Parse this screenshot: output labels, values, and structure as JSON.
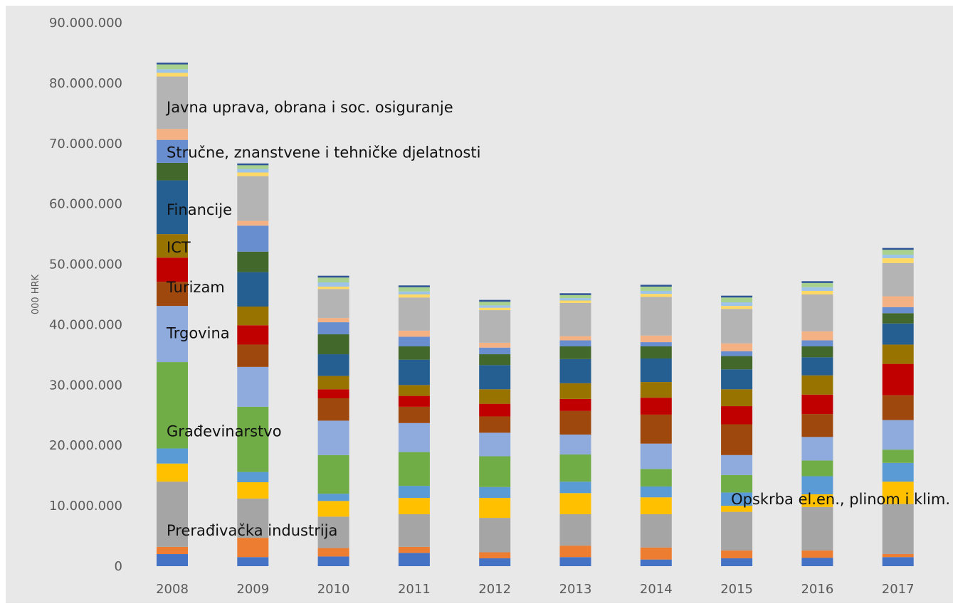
{
  "chart_data": {
    "type": "bar",
    "stacked": true,
    "title": "",
    "xlabel": "",
    "ylabel": "000 HRK",
    "ylim": [
      0,
      90000000
    ],
    "yticks": [
      0,
      10000000,
      20000000,
      30000000,
      40000000,
      50000000,
      60000000,
      70000000,
      80000000,
      90000000
    ],
    "ytick_labels": [
      "0",
      "10.000.000",
      "20.000.000",
      "30.000.000",
      "40.000.000",
      "50.000.000",
      "60.000.000",
      "70.000.000",
      "80.000.000",
      "90.000.000"
    ],
    "grid": false,
    "legend": "none",
    "categories": [
      "2008",
      "2009",
      "2010",
      "2011",
      "2012",
      "2013",
      "2014",
      "2015",
      "2016",
      "2017"
    ],
    "series": [
      {
        "color": "#4472c4",
        "values": [
          2000000,
          1500000,
          1600000,
          2200000,
          1300000,
          1500000,
          1100000,
          1300000,
          1400000,
          1500000
        ]
      },
      {
        "color": "#ed7d31",
        "values": [
          1200000,
          3200000,
          1400000,
          1000000,
          1000000,
          1900000,
          2000000,
          1300000,
          1200000,
          500000
        ]
      },
      {
        "color": "#a5a5a5",
        "values": [
          10800000,
          6500000,
          5200000,
          5400000,
          5700000,
          5200000,
          5500000,
          6400000,
          7200000,
          8300000
        ]
      },
      {
        "color": "#ffc000",
        "values": [
          3000000,
          2700000,
          2600000,
          2700000,
          3300000,
          3500000,
          2800000,
          1000000,
          2100000,
          3700000
        ]
      },
      {
        "color": "#5b9bd5",
        "values": [
          2500000,
          1700000,
          1200000,
          2000000,
          1800000,
          1900000,
          1800000,
          2200000,
          3000000,
          3100000
        ]
      },
      {
        "color": "#70ad47",
        "values": [
          14300000,
          10800000,
          6400000,
          5600000,
          5100000,
          4500000,
          2900000,
          2900000,
          2600000,
          2200000
        ]
      },
      {
        "color": "#8faadc",
        "values": [
          9300000,
          6600000,
          5700000,
          4800000,
          3900000,
          3300000,
          4200000,
          3300000,
          3900000,
          4900000
        ]
      },
      {
        "color": "#9e480e",
        "values": [
          4000000,
          3700000,
          3700000,
          2700000,
          2700000,
          3900000,
          4800000,
          5100000,
          3800000,
          4100000
        ]
      },
      {
        "color": "#c00000",
        "values": [
          4000000,
          3200000,
          1500000,
          1800000,
          2100000,
          2000000,
          2800000,
          3000000,
          3200000,
          5200000
        ]
      },
      {
        "color": "#997300",
        "values": [
          3900000,
          3100000,
          2200000,
          1800000,
          2400000,
          2600000,
          2600000,
          2800000,
          3200000,
          3200000
        ]
      },
      {
        "color": "#255e91",
        "values": [
          8900000,
          5700000,
          3600000,
          4200000,
          4000000,
          4000000,
          3900000,
          3300000,
          3000000,
          3500000
        ]
      },
      {
        "color": "#43682b",
        "values": [
          2900000,
          3400000,
          3300000,
          2200000,
          1800000,
          2100000,
          2000000,
          2200000,
          1800000,
          1700000
        ]
      },
      {
        "color": "#698ed0",
        "values": [
          3800000,
          4300000,
          2000000,
          1600000,
          1100000,
          1000000,
          700000,
          800000,
          1000000,
          1000000
        ]
      },
      {
        "color": "#f4b183",
        "values": [
          1800000,
          800000,
          700000,
          1000000,
          800000,
          700000,
          1100000,
          1300000,
          1500000,
          1800000
        ]
      },
      {
        "color": "#b4b4b4",
        "values": [
          8700000,
          7400000,
          4800000,
          5500000,
          5400000,
          5500000,
          6400000,
          5700000,
          6100000,
          5500000
        ]
      },
      {
        "color": "#ffd966",
        "values": [
          600000,
          600000,
          400000,
          500000,
          400000,
          400000,
          500000,
          500000,
          600000,
          800000
        ]
      },
      {
        "color": "#9dc3e6",
        "values": [
          600000,
          600000,
          700000,
          500000,
          400000,
          400000,
          500000,
          600000,
          600000,
          600000
        ]
      },
      {
        "color": "#a9d18e",
        "values": [
          800000,
          600000,
          800000,
          700000,
          600000,
          500000,
          700000,
          800000,
          700000,
          800000
        ]
      },
      {
        "color": "#2f5597",
        "values": [
          300000,
          300000,
          300000,
          300000,
          300000,
          300000,
          300000,
          300000,
          300000,
          300000
        ]
      }
    ],
    "annotations": [
      {
        "text": "Javna uprava, obrana i soc. osiguranje",
        "category": "2008",
        "y": 76000000
      },
      {
        "text": "Stručne, znanstvene i tehničke djelatnosti",
        "category": "2008",
        "y": 68500000
      },
      {
        "text": "Financije",
        "category": "2008",
        "y": 59000000
      },
      {
        "text": "ICT",
        "category": "2008",
        "y": 52800000
      },
      {
        "text": "Turizam",
        "category": "2008",
        "y": 46200000
      },
      {
        "text": "Trgovina",
        "category": "2008",
        "y": 38600000
      },
      {
        "text": "Građevinarstvo",
        "category": "2008",
        "y": 22300000
      },
      {
        "text": "Opskrba  el.en., plinom i klim.",
        "category": "2015",
        "y": 11100000
      },
      {
        "text": "Prerađivačka  industrija",
        "category": "2008",
        "y": 5900000
      }
    ]
  }
}
